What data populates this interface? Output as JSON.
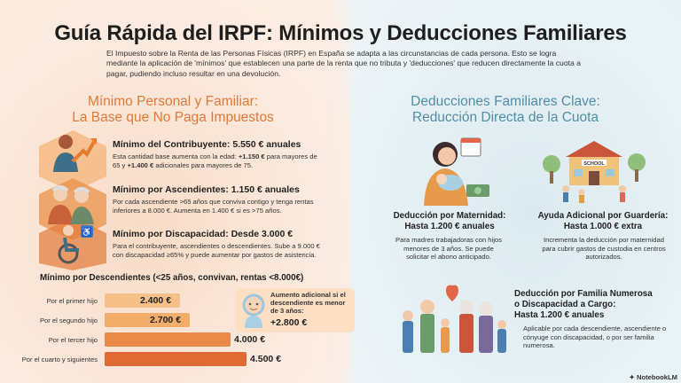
{
  "header": {
    "title": "Guía Rápida del IRPF: Mínimos y Deducciones Familiares",
    "intro": "El Impuesto sobre la Renta de las Personas Físicas (IRPF) en España se adapta a las circunstancias de cada persona. Esto se logra mediante la aplicación de 'mínimos' que establecen una parte de la renta que no tributa y 'deducciones' que reducen directamente la cuota a pagar, pudiendo incluso resultar en una devolución."
  },
  "left": {
    "heading_line1": "Mínimo Personal y Familiar:",
    "heading_line2": "La Base que No Paga Impuestos",
    "items": [
      {
        "title": "Mínimo del Contribuyente: 5.550 € anuales",
        "text_pre": "Esta cantidad base aumenta con la edad: ",
        "text_b1": "+1.150 €",
        "text_mid": " para mayores de 65 y ",
        "text_b2": "+1.400 €",
        "text_post": " adicionales para mayores de 75."
      },
      {
        "title": "Mínimo por Ascendientes: 1.150 € anuales",
        "text": "Por cada ascendiente >65 años que conviva contigo y tenga rentas inferiores a 8.000 €. Aumenta en 1.400 € si es >75 años."
      },
      {
        "title": "Mínimo por Discapacidad: Desde 3.000 €",
        "text": "Para el contribuyente, ascendientes o descendientes. Sube a 9.000 € con discapacidad ≥65% y puede aumentar por gastos de asistencia."
      }
    ],
    "descendants": {
      "title": "Mínimo por Descendientes (<25 años, convivan, rentas <8.000€)",
      "bars": [
        {
          "label": "Por el primer hijo",
          "value": 2400,
          "display": "2.400 €"
        },
        {
          "label": "Por el segundo hijo",
          "value": 2700,
          "display": "2.700 €"
        },
        {
          "label": "Por el tercer hijo",
          "value": 4000,
          "display": "4.000 €"
        },
        {
          "label": "Por el cuarto y siguientes",
          "value": 4500,
          "display": "4.500 €"
        }
      ],
      "callout_text": "Aumento adicional si el descendiente es menor de 3 años:",
      "callout_value": "+2.800 €"
    }
  },
  "right": {
    "heading_line1": "Deducciones Familiares Clave:",
    "heading_line2": "Reducción Directa de la Cuota",
    "items": [
      {
        "title_l1": "Deducción por Maternidad:",
        "title_l2": "Hasta 1.200 € anuales",
        "text": "Para madres trabajadoras con hijos menores de 3 años. Se puede solicitar el abono anticipado."
      },
      {
        "title_l1": "Ayuda Adicional por Guardería:",
        "title_l2": "Hasta 1.000 € extra",
        "text": "Incrementa la deducción por maternidad para cubrir gastos de custodia en centros autorizados."
      },
      {
        "title_l1": "Deducción por Familia Numerosa",
        "title_l2": "o Discapacidad a Cargo:",
        "title_l3": "Hasta 1.200 € anuales",
        "text": "Aplicable por cada descendiente, ascendiente o cónyuge con discapacidad, o por ser familia numerosa."
      }
    ],
    "school_sign": "SCHOOL"
  },
  "brand": "NotebookLM",
  "colors": {
    "orange_heading": "#e07a3a",
    "blue_heading": "#4f8fa6",
    "bar_light": "#f6c089",
    "bar_dark": "#e06a36"
  }
}
